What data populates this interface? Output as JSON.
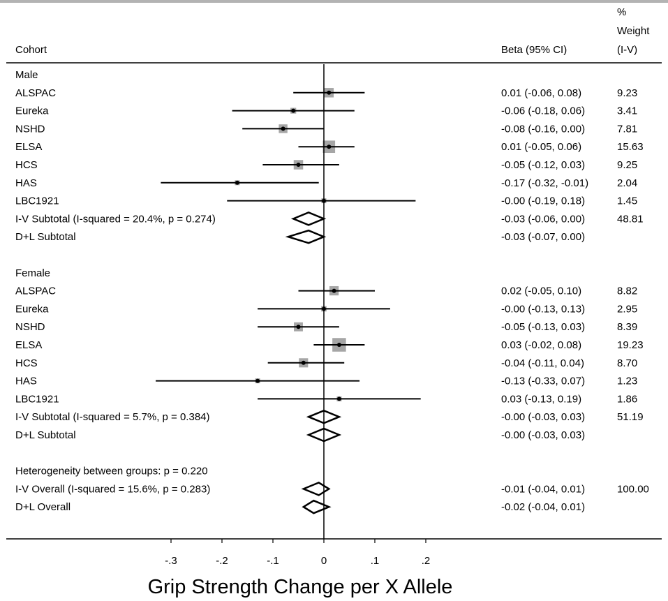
{
  "chart_data": {
    "type": "forest",
    "xlabel": "Grip Strength Change per X Allele",
    "xticks": [
      "-.3",
      "-.2",
      "-.1",
      "0",
      ".1",
      ".2"
    ],
    "xtick_values": [
      -0.3,
      -0.2,
      -0.1,
      0,
      0.1,
      0.2
    ],
    "xlim": [
      -0.335,
      0.21
    ],
    "headers": {
      "cohort": "Cohort",
      "beta": "Beta (95% CI)",
      "weight": [
        "%",
        "Weight",
        "(I-V)"
      ]
    },
    "rows": [
      {
        "kind": "group",
        "label": "Male"
      },
      {
        "kind": "study",
        "label": "ALSPAC",
        "est": 0.01,
        "lo": -0.06,
        "hi": 0.08,
        "ci": "0.01 (-0.06, 0.08)",
        "weight": "9.23",
        "w": 9.23
      },
      {
        "kind": "study",
        "label": "Eureka",
        "est": -0.06,
        "lo": -0.18,
        "hi": 0.06,
        "ci": "-0.06 (-0.18, 0.06)",
        "weight": "3.41",
        "w": 3.41
      },
      {
        "kind": "study",
        "label": "NSHD",
        "est": -0.08,
        "lo": -0.16,
        "hi": 0.0,
        "ci": "-0.08 (-0.16, 0.00)",
        "weight": "7.81",
        "w": 7.81
      },
      {
        "kind": "study",
        "label": "ELSA",
        "est": 0.01,
        "lo": -0.05,
        "hi": 0.06,
        "ci": "0.01 (-0.05, 0.06)",
        "weight": "15.63",
        "w": 15.63
      },
      {
        "kind": "study",
        "label": "HCS",
        "est": -0.05,
        "lo": -0.12,
        "hi": 0.03,
        "ci": "-0.05 (-0.12, 0.03)",
        "weight": "9.25",
        "w": 9.25
      },
      {
        "kind": "study",
        "label": "HAS",
        "est": -0.17,
        "lo": -0.32,
        "hi": -0.01,
        "ci": "-0.17 (-0.32, -0.01)",
        "weight": "2.04",
        "w": 2.04
      },
      {
        "kind": "study",
        "label": "LBC1921",
        "est": -0.0,
        "lo": -0.19,
        "hi": 0.18,
        "ci": "-0.00 (-0.19, 0.18)",
        "weight": "1.45",
        "w": 1.45
      },
      {
        "kind": "summary",
        "label": "I-V Subtotal  (I-squared = 20.4%, p = 0.274)",
        "est": -0.03,
        "lo": -0.06,
        "hi": 0.0,
        "ci": "-0.03 (-0.06, 0.00)",
        "weight": "48.81"
      },
      {
        "kind": "summary",
        "label": "D+L Subtotal",
        "est": -0.03,
        "lo": -0.07,
        "hi": 0.0,
        "ci": "-0.03 (-0.07, 0.00)",
        "weight": ""
      },
      {
        "kind": "blank"
      },
      {
        "kind": "group",
        "label": "Female"
      },
      {
        "kind": "study",
        "label": "ALSPAC",
        "est": 0.02,
        "lo": -0.05,
        "hi": 0.1,
        "ci": "0.02 (-0.05, 0.10)",
        "weight": "8.82",
        "w": 8.82
      },
      {
        "kind": "study",
        "label": "Eureka",
        "est": -0.0,
        "lo": -0.13,
        "hi": 0.13,
        "ci": "-0.00 (-0.13, 0.13)",
        "weight": "2.95",
        "w": 2.95
      },
      {
        "kind": "study",
        "label": "NSHD",
        "est": -0.05,
        "lo": -0.13,
        "hi": 0.03,
        "ci": "-0.05 (-0.13, 0.03)",
        "weight": "8.39",
        "w": 8.39
      },
      {
        "kind": "study",
        "label": "ELSA",
        "est": 0.03,
        "lo": -0.02,
        "hi": 0.08,
        "ci": "0.03 (-0.02, 0.08)",
        "weight": "19.23",
        "w": 19.23
      },
      {
        "kind": "study",
        "label": "HCS",
        "est": -0.04,
        "lo": -0.11,
        "hi": 0.04,
        "ci": "-0.04 (-0.11, 0.04)",
        "weight": "8.70",
        "w": 8.7
      },
      {
        "kind": "study",
        "label": "HAS",
        "est": -0.13,
        "lo": -0.33,
        "hi": 0.07,
        "ci": "-0.13 (-0.33, 0.07)",
        "weight": "1.23",
        "w": 1.23
      },
      {
        "kind": "study",
        "label": "LBC1921",
        "est": 0.03,
        "lo": -0.13,
        "hi": 0.19,
        "ci": "0.03 (-0.13, 0.19)",
        "weight": "1.86",
        "w": 1.86
      },
      {
        "kind": "summary",
        "label": "I-V Subtotal  (I-squared = 5.7%, p = 0.384)",
        "est": -0.0,
        "lo": -0.03,
        "hi": 0.03,
        "ci": "-0.00 (-0.03, 0.03)",
        "weight": "51.19"
      },
      {
        "kind": "summary",
        "label": "D+L Subtotal",
        "est": -0.0,
        "lo": -0.03,
        "hi": 0.03,
        "ci": "-0.00 (-0.03, 0.03)",
        "weight": ""
      },
      {
        "kind": "blank"
      },
      {
        "kind": "text",
        "label": "Heterogeneity between groups: p = 0.220"
      },
      {
        "kind": "summary",
        "label": "I-V Overall  (I-squared = 15.6%, p = 0.283)",
        "est": -0.01,
        "lo": -0.04,
        "hi": 0.01,
        "ci": "-0.01 (-0.04, 0.01)",
        "weight": "100.00"
      },
      {
        "kind": "summary",
        "label": "D+L Overall",
        "est": -0.02,
        "lo": -0.04,
        "hi": 0.01,
        "ci": "-0.02 (-0.04, 0.01)",
        "weight": ""
      }
    ]
  },
  "colors": {
    "background": "#ffffff",
    "ink": "#000000",
    "box": "#a6a6a6",
    "top_rule": "#b3b3b3"
  }
}
